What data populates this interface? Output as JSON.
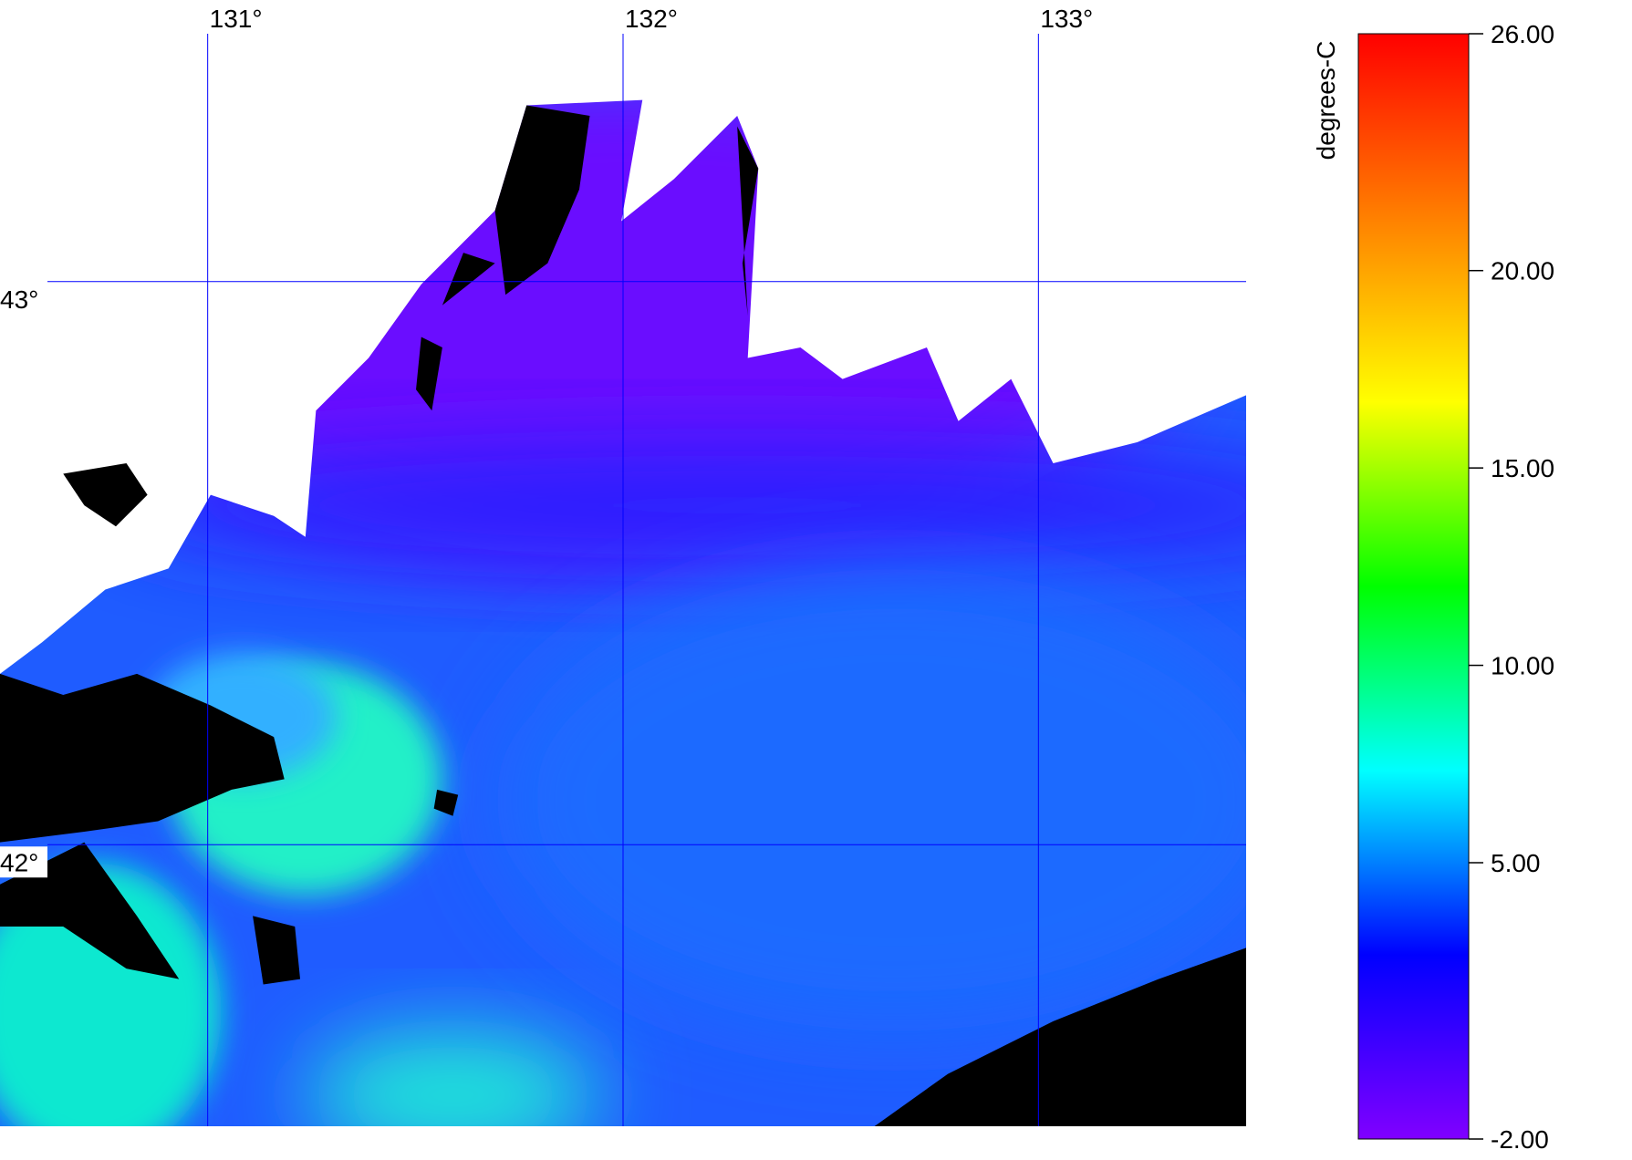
{
  "map": {
    "lonlim": [
      130.5,
      133.5
    ],
    "latlim": [
      41.5,
      43.5
    ],
    "lon_ticks": [
      {
        "value": 131,
        "label": "131°"
      },
      {
        "value": 132,
        "label": "132°"
      },
      {
        "value": 133,
        "label": "133°"
      }
    ],
    "lat_ticks": [
      {
        "value": 43,
        "label": "43°"
      },
      {
        "value": 42,
        "label": "42°"
      }
    ],
    "grid_color": "#0000ff",
    "colorbar": {
      "label": "degrees-C",
      "range": [
        -2,
        26
      ],
      "colors": [
        "#8000ff",
        "#0000ff",
        "#00ffff",
        "#00ff00",
        "#ffff00",
        "#ff8000",
        "#ff0000"
      ],
      "ticks": [
        {
          "value": 26,
          "label": "26.00"
        },
        {
          "value": 20,
          "label": "20.00"
        },
        {
          "value": 15,
          "label": "15.00"
        },
        {
          "value": 10,
          "label": "10.00"
        },
        {
          "value": 5,
          "label": "5.00"
        },
        {
          "value": -2,
          "label": "-2.00"
        }
      ]
    }
  }
}
